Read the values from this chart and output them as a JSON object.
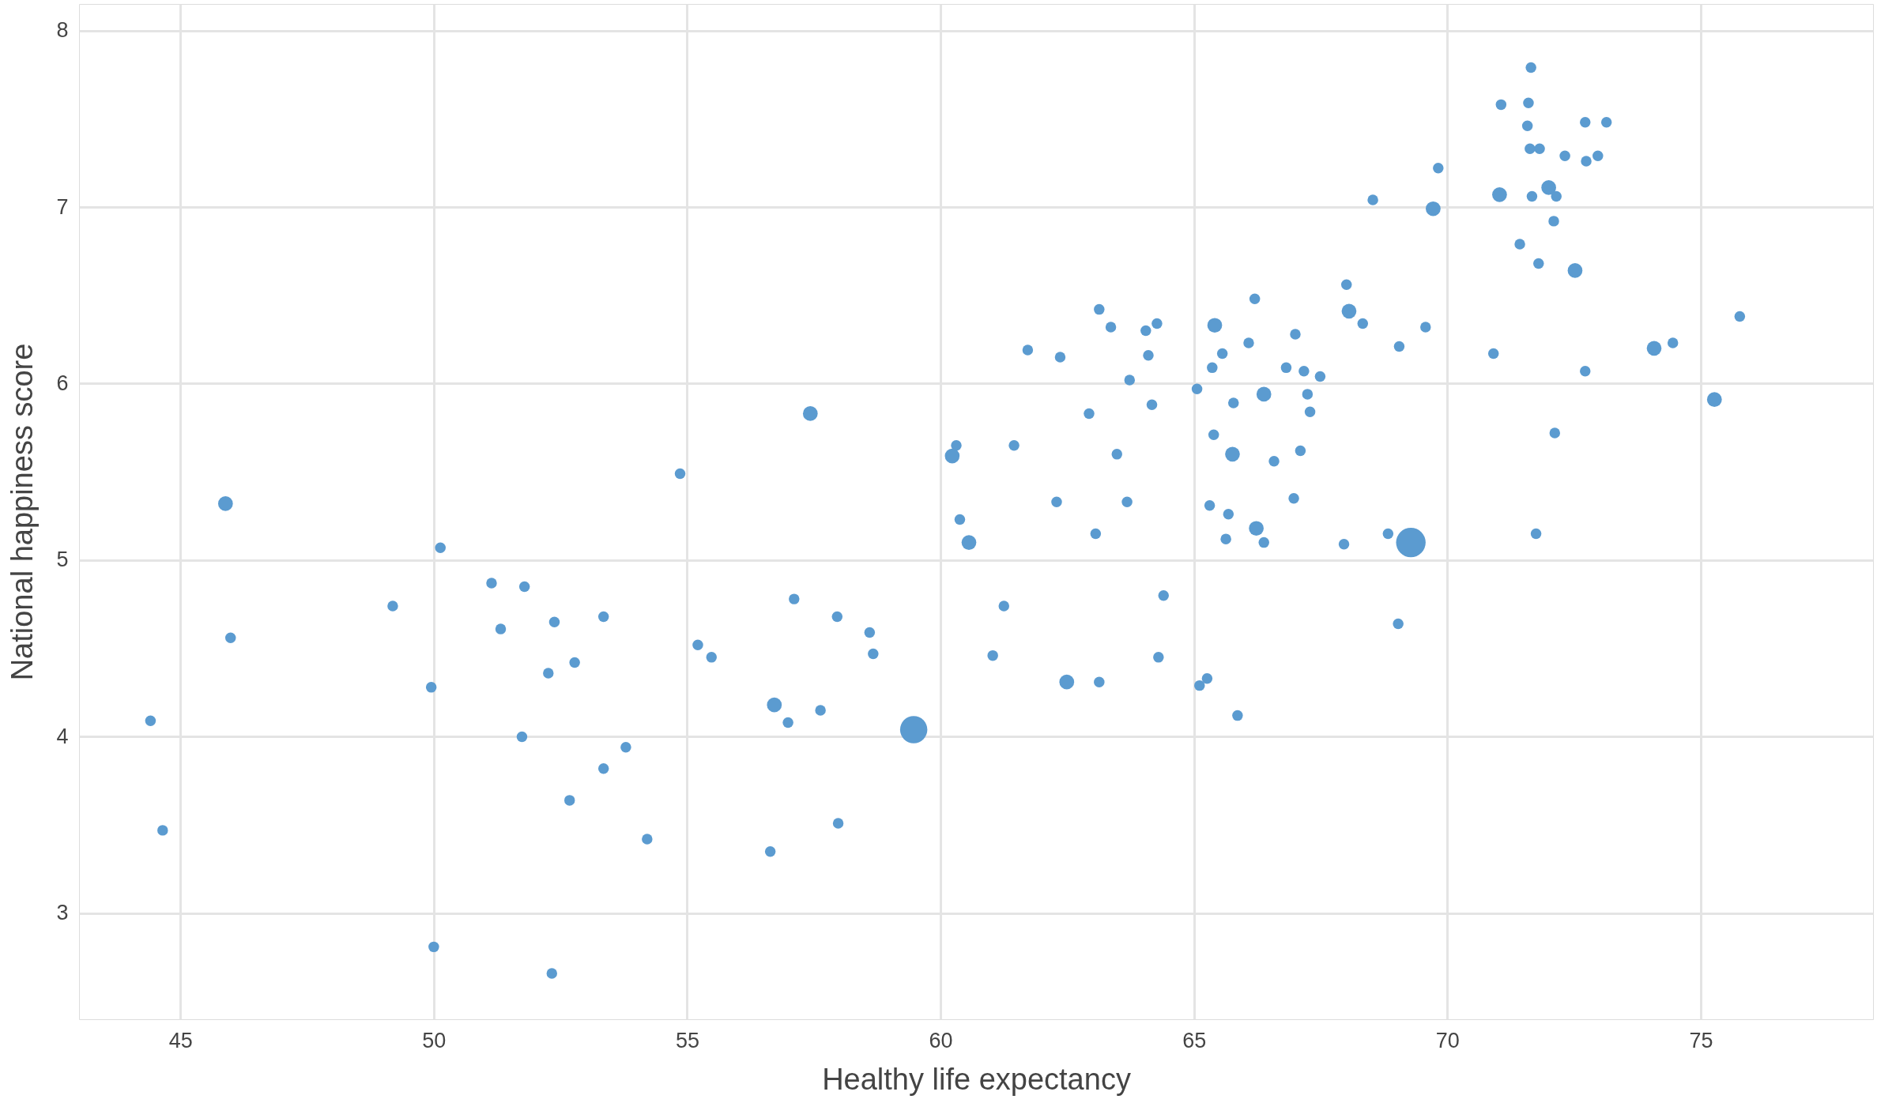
{
  "chart_data": {
    "type": "bubble",
    "xlabel": "Healthy life expectancy",
    "ylabel": "National happiness score",
    "xlim": [
      43,
      78.4
    ],
    "ylim": [
      2.4,
      8.15
    ],
    "xticks": [
      45,
      50,
      55,
      60,
      65,
      70,
      75
    ],
    "yticks": [
      3,
      4,
      5,
      6,
      7,
      8
    ],
    "grid": true,
    "legend": false,
    "x": [
      44.41,
      44.65,
      45.89,
      45.99,
      49.19,
      49.95,
      50.0,
      50.13,
      51.14,
      51.32,
      51.79,
      51.74,
      52.26,
      52.38,
      52.33,
      52.68,
      52.78,
      53.35,
      53.35,
      53.79,
      54.21,
      54.86,
      55.21,
      55.48,
      56.64,
      56.72,
      56.99,
      57.11,
      57.43,
      57.63,
      57.96,
      57.98,
      58.6,
      58.67,
      59.47,
      60.23,
      60.31,
      60.38,
      60.56,
      61.03,
      61.25,
      61.45,
      61.72,
      62.29,
      62.36,
      62.49,
      62.93,
      63.06,
      63.13,
      63.13,
      63.36,
      63.48,
      63.68,
      63.73,
      64.05,
      64.1,
      64.17,
      64.27,
      64.3,
      64.4,
      65.06,
      65.11,
      65.26,
      65.31,
      65.36,
      65.41,
      65.39,
      65.56,
      65.63,
      65.68,
      65.76,
      65.78,
      65.86,
      66.08,
      66.2,
      66.23,
      66.38,
      66.38,
      66.58,
      66.82,
      66.97,
      67.0,
      67.1,
      67.17,
      67.24,
      67.29,
      67.49,
      67.96,
      68.01,
      68.06,
      68.33,
      68.53,
      68.83,
      69.03,
      69.05,
      69.28,
      69.57,
      69.72,
      69.82,
      70.91,
      71.03,
      71.06,
      71.43,
      71.58,
      71.6,
      71.65,
      71.63,
      71.67,
      71.75,
      71.8,
      71.82,
      72.0,
      72.1,
      72.15,
      72.12,
      72.32,
      72.52,
      72.72,
      72.74,
      72.72,
      72.97,
      73.14,
      74.08,
      74.45,
      75.27,
      75.77
    ],
    "series": [
      {
        "color": "#5b9bd0",
        "values": [
          4.09,
          3.47,
          5.32,
          4.56,
          4.74,
          4.28,
          2.81,
          5.07,
          4.87,
          4.61,
          4.85,
          4.0,
          4.36,
          4.65,
          2.66,
          3.64,
          4.42,
          4.68,
          3.82,
          3.94,
          3.42,
          5.49,
          4.52,
          4.45,
          3.35,
          4.18,
          4.08,
          4.78,
          5.83,
          4.15,
          4.68,
          3.51,
          4.59,
          4.47,
          4.04,
          5.59,
          5.65,
          5.23,
          5.1,
          4.46,
          4.74,
          5.65,
          6.19,
          5.33,
          6.15,
          4.31,
          5.83,
          5.15,
          4.31,
          6.42,
          6.32,
          5.6,
          5.33,
          6.02,
          6.3,
          6.16,
          5.88,
          6.34,
          4.45,
          4.8,
          5.97,
          4.29,
          4.33,
          5.31,
          6.09,
          6.33,
          5.71,
          6.17,
          5.12,
          5.26,
          5.6,
          5.89,
          4.12,
          6.23,
          6.48,
          5.18,
          5.94,
          5.1,
          5.56,
          6.09,
          5.35,
          6.28,
          5.62,
          6.07,
          5.94,
          5.84,
          6.04,
          5.09,
          6.56,
          6.41,
          6.34,
          7.04,
          5.15,
          4.64,
          6.21,
          5.1,
          6.32,
          6.99,
          7.22,
          6.17,
          7.07,
          7.58,
          6.79,
          7.46,
          7.59,
          7.79,
          7.33,
          7.06,
          5.15,
          6.68,
          7.33,
          7.11,
          6.92,
          7.06,
          5.72,
          7.29,
          6.64,
          7.48,
          7.26,
          6.07,
          7.29,
          7.48,
          6.2,
          6.23,
          5.91,
          6.38
        ],
        "sizes": [
          0.13,
          0.13,
          0.25,
          0.13,
          0.13,
          0.13,
          0.13,
          0.13,
          0.13,
          0.13,
          0.13,
          0.13,
          0.13,
          0.13,
          0.13,
          0.13,
          0.13,
          0.13,
          0.13,
          0.13,
          0.13,
          0.13,
          0.13,
          0.13,
          0.13,
          0.25,
          0.13,
          0.13,
          0.25,
          0.13,
          0.13,
          0.13,
          0.13,
          0.13,
          0.85,
          0.25,
          0.13,
          0.13,
          0.25,
          0.13,
          0.13,
          0.13,
          0.13,
          0.13,
          0.13,
          0.25,
          0.13,
          0.13,
          0.13,
          0.13,
          0.13,
          0.13,
          0.13,
          0.13,
          0.13,
          0.13,
          0.13,
          0.13,
          0.13,
          0.13,
          0.13,
          0.13,
          0.13,
          0.13,
          0.13,
          0.25,
          0.13,
          0.13,
          0.13,
          0.13,
          0.25,
          0.13,
          0.13,
          0.13,
          0.13,
          0.25,
          0.25,
          0.13,
          0.13,
          0.13,
          0.13,
          0.13,
          0.13,
          0.13,
          0.13,
          0.13,
          0.13,
          0.13,
          0.13,
          0.25,
          0.13,
          0.13,
          0.13,
          0.13,
          0.13,
          1,
          0.13,
          0.25,
          0.13,
          0.13,
          0.25,
          0.13,
          0.13,
          0.13,
          0.13,
          0.13,
          0.13,
          0.13,
          0.13,
          0.13,
          0.13,
          0.25,
          0.13,
          0.13,
          0.13,
          0.13,
          0.25,
          0.13,
          0.13,
          0.13,
          0.13,
          0.13,
          0.25,
          0.13,
          0.25,
          0.13
        ]
      }
    ]
  }
}
